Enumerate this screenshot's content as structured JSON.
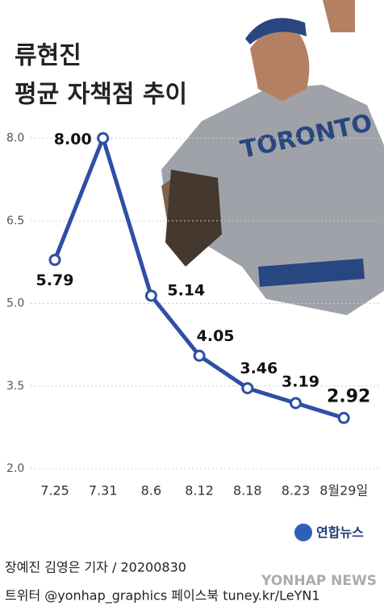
{
  "chart_data": {
    "type": "line",
    "title": [
      "류현진",
      "평균 자책점 추이"
    ],
    "categories": [
      "7.25",
      "7.31",
      "8.6",
      "8.12",
      "8.18",
      "8.23",
      "8월29일"
    ],
    "series": [
      {
        "color": "#2f4fa6",
        "values": [
          5.79,
          8.0,
          5.14,
          4.05,
          3.46,
          3.19,
          2.92
        ],
        "value_labels": [
          "5.79",
          "8.00",
          "5.14",
          "4.05",
          "3.46",
          "3.19",
          "2.92"
        ]
      }
    ],
    "ylim": [
      2,
      8
    ],
    "yticks": [
      {
        "value": 2,
        "label": "2.0"
      },
      3.5,
      {
        "value": 5,
        "label": "5.0"
      },
      6.5,
      {
        "value": 8,
        "label": "8.0"
      }
    ],
    "grid": true
  },
  "footer": {
    "logo": "연합뉴스",
    "credit": "장예진 김영은 기자 / 20200830",
    "social": "트위터 @yonhap_graphics  페이스북 tuney.kr/LeYN1",
    "watermark": "YONHAP NEWS"
  }
}
